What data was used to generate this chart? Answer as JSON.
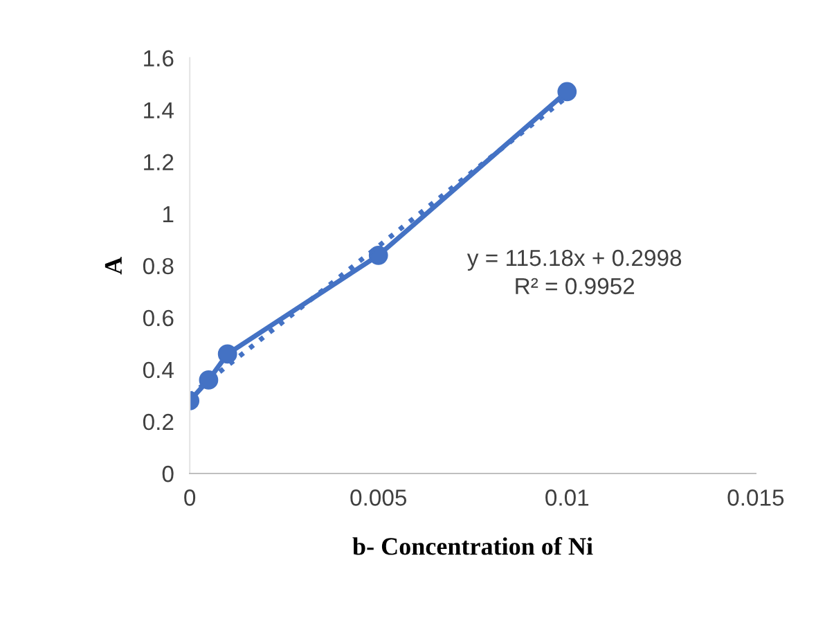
{
  "chart_data": {
    "type": "line",
    "xlabel": "b- Concentration of Ni",
    "ylabel": "A",
    "x": [
      0,
      0.0005,
      0.001,
      0.005,
      0.01
    ],
    "series": [
      {
        "color": "#4472c4",
        "marker": "circle",
        "line_style": "solid",
        "values": [
          0.28,
          0.36,
          0.46,
          0.84,
          1.47
        ]
      },
      {
        "color": "#4472c4",
        "marker": "none",
        "line_style": "dotted",
        "x": [
          0,
          0.01
        ],
        "values": [
          0.3,
          1.45
        ]
      }
    ],
    "annotations": [
      "y = 115.18x + 0.2998\nR² = 0.9952"
    ],
    "xlim": [
      0,
      0.015
    ],
    "xticks": [
      0,
      0.005,
      0.01,
      0.015
    ],
    "ylim": [
      0,
      1.6
    ],
    "yticks": [
      0,
      0.2,
      0.4,
      0.6,
      0.8,
      1,
      1.2,
      1.4,
      1.6
    ],
    "grid": false,
    "legend": false
  }
}
